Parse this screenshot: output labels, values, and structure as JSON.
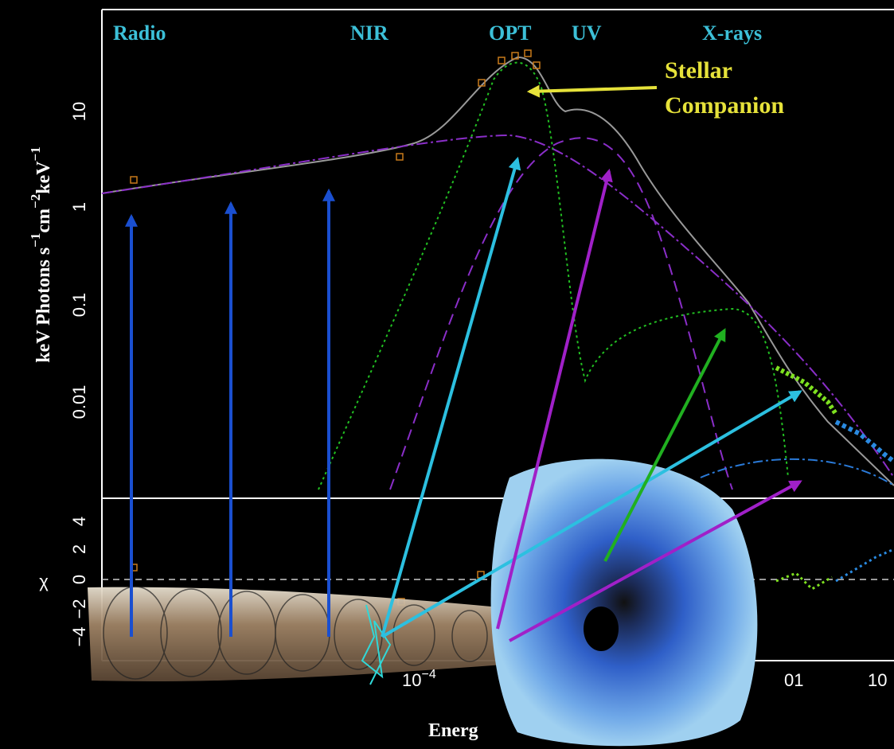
{
  "bands": [
    "Radio",
    "NIR",
    "OPT",
    "UV",
    "X-rays"
  ],
  "annotation": [
    "Stellar",
    "Companion"
  ],
  "y_axis_label": [
    "keV Photons s",
    "−1",
    "cm",
    "−2",
    "keV",
    "−1"
  ],
  "y_ticks": [
    "10",
    "1",
    "0.1",
    "0.01"
  ],
  "chi_label": "χ",
  "chi_ticks": [
    "4",
    "2",
    "0",
    "−2",
    "−4"
  ],
  "x_ticks": [
    {
      "base": "10",
      "exp": "−4"
    },
    {
      "base": "01"
    },
    {
      "base": "10"
    }
  ],
  "x_axis_label": "Energ"
}
